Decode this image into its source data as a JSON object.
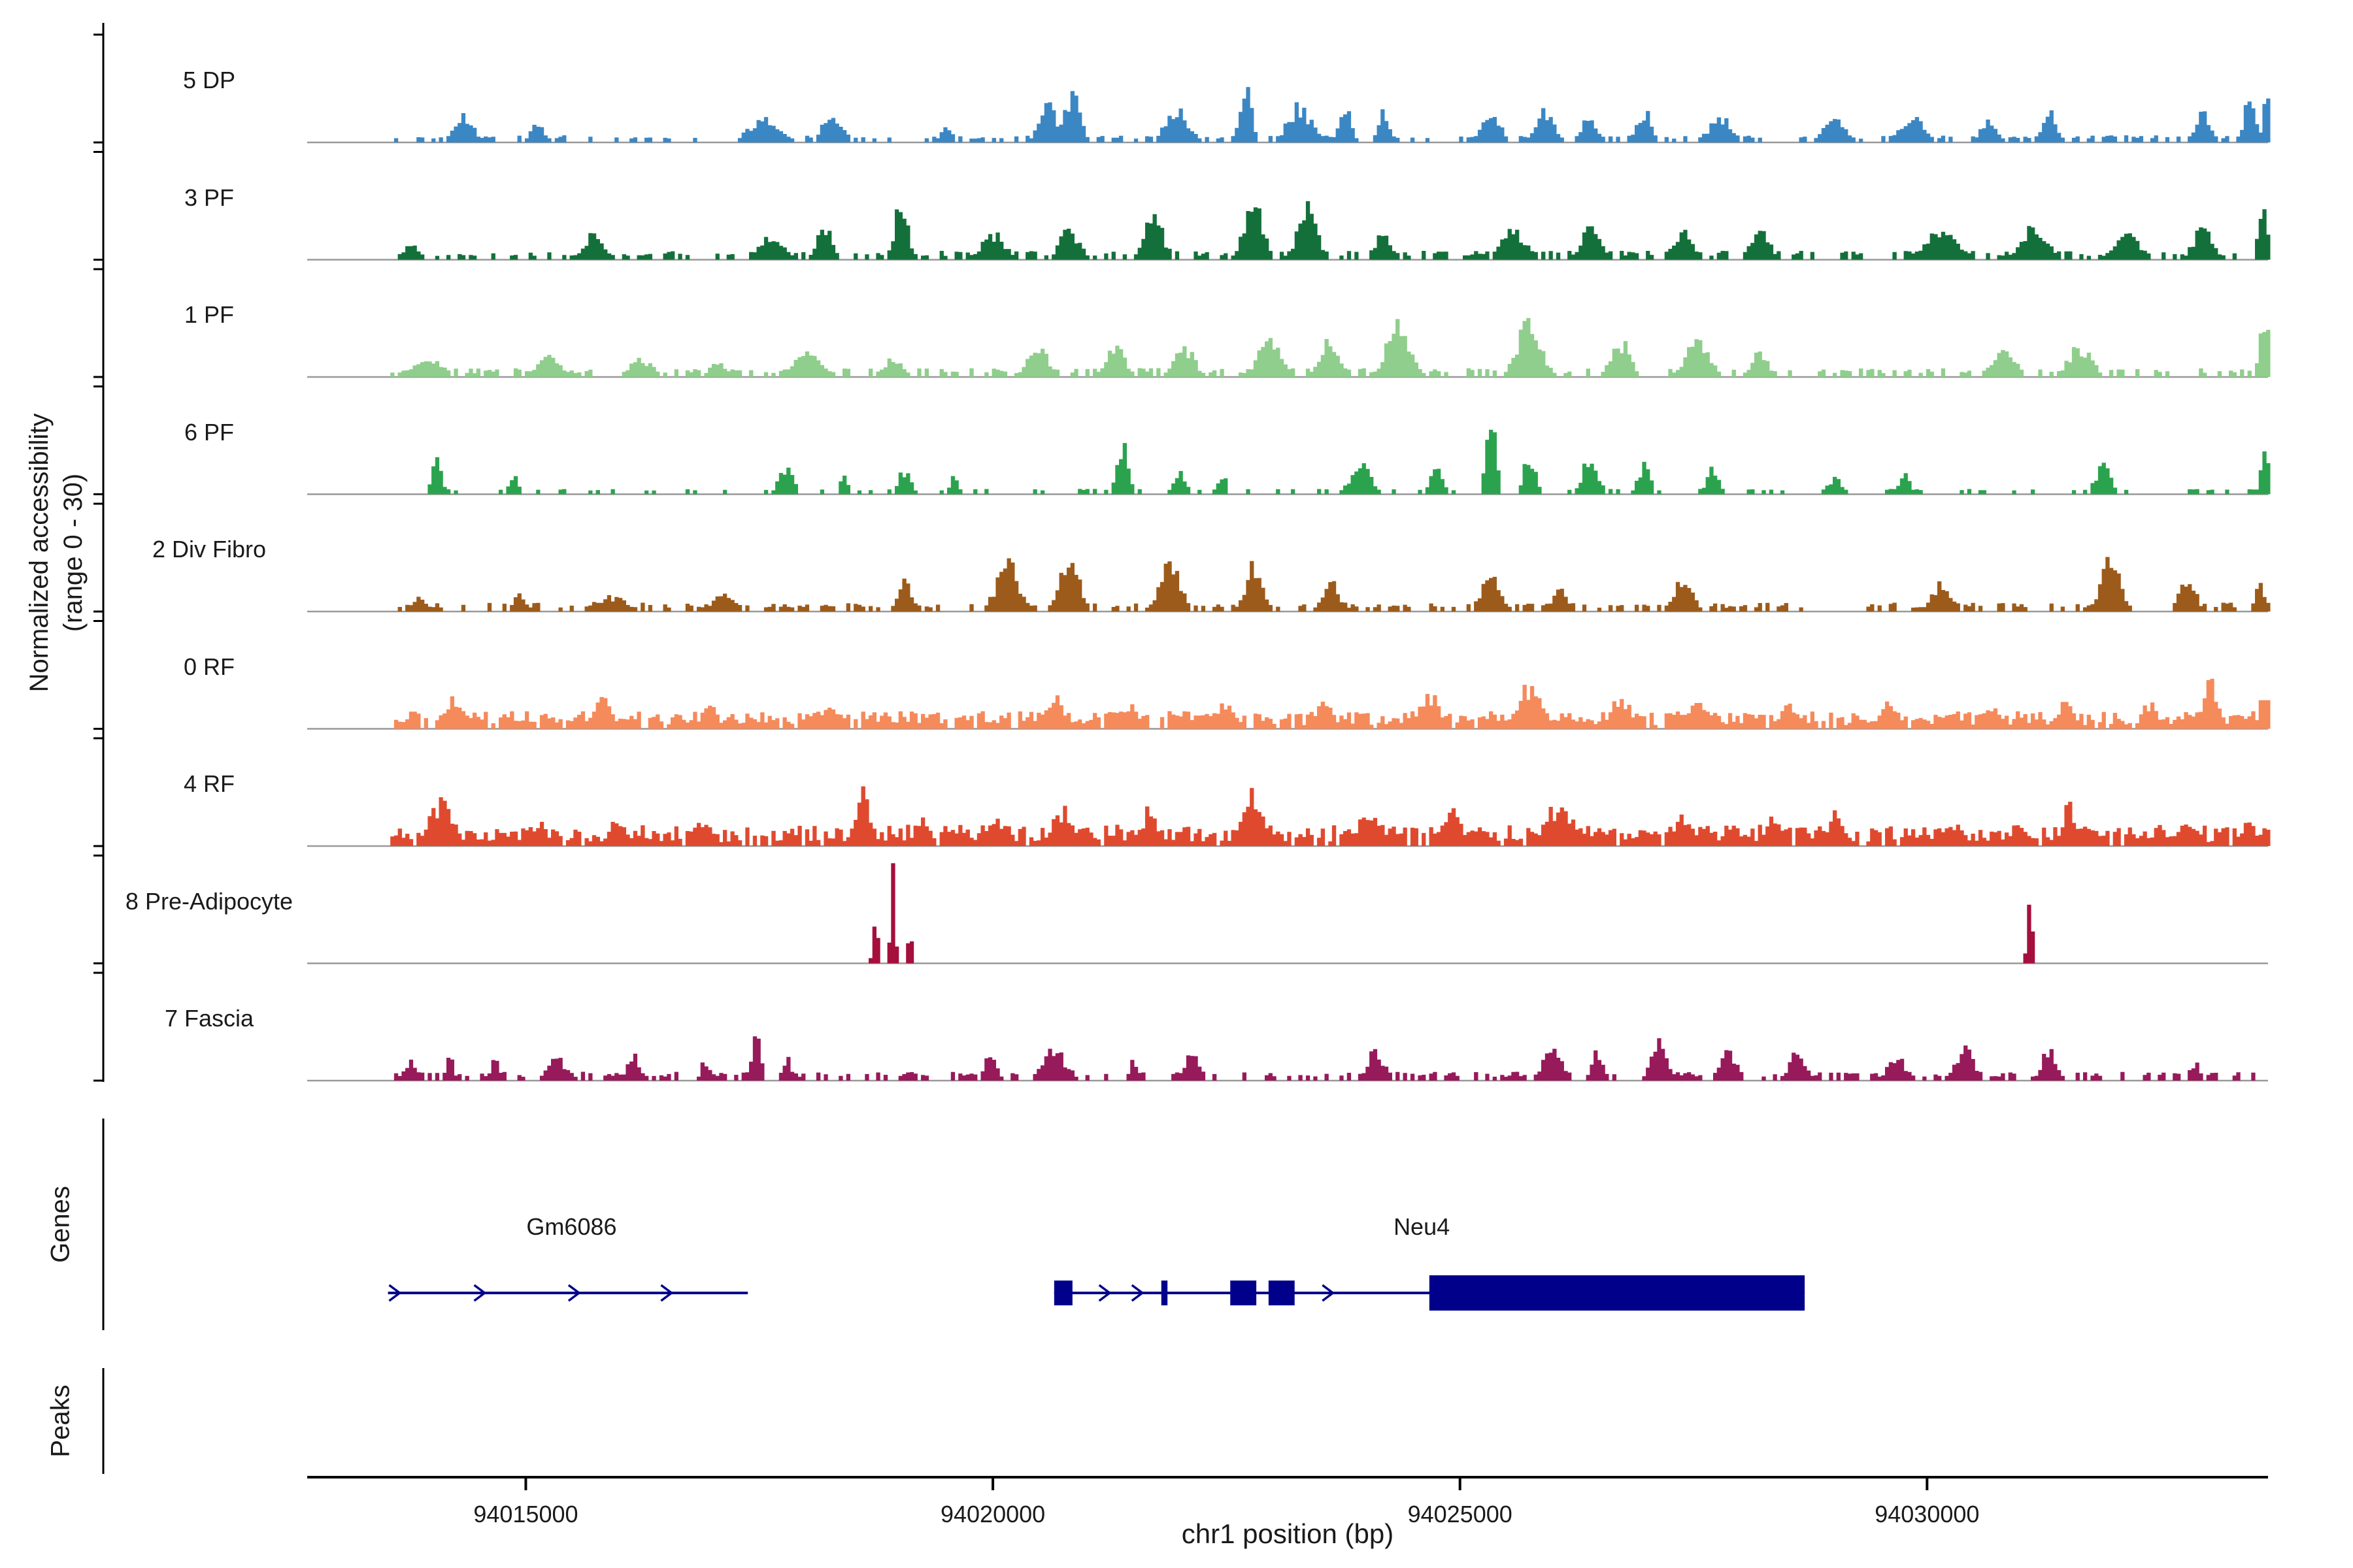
{
  "sections": {
    "genes_label": "Genes",
    "peaks_label": "Peaks"
  },
  "chart_data": {
    "type": "area",
    "title": "",
    "xlabel": "chr1 position (bp)",
    "ylabel": "Normalized accessibility (range 0 - 30)",
    "ylabel_line1": "Normalized accessibility",
    "ylabel_line2": "(range 0 - 30)",
    "xlim": [
      94012660,
      94033650
    ],
    "x_ticks": [
      94015000,
      94020000,
      94025000,
      94030000
    ],
    "x_tick_labels": [
      "94015000",
      "94020000",
      "94025000",
      "94030000"
    ],
    "track_ylim": [
      0,
      30
    ],
    "signal_start": 94013550,
    "signal_end": 94033640,
    "gene_color": "#00008B",
    "baseline_color": "#999999",
    "tracks": [
      {
        "name": "5 DP",
        "color": "#3B87C4",
        "floor": 0.04,
        "clusters": [
          [
            94014340,
            0.25,
            250
          ],
          [
            94015120,
            0.2,
            150
          ],
          [
            94017540,
            0.22,
            400
          ],
          [
            94018280,
            0.3,
            250
          ],
          [
            94019500,
            0.15,
            150
          ],
          [
            94020600,
            0.35,
            250
          ],
          [
            94020850,
            0.45,
            200
          ],
          [
            94021970,
            0.3,
            300
          ],
          [
            94022700,
            0.55,
            160
          ],
          [
            94023280,
            0.35,
            300
          ],
          [
            94023770,
            0.4,
            150
          ],
          [
            94024180,
            0.3,
            150
          ],
          [
            94025330,
            0.3,
            250
          ],
          [
            94025900,
            0.3,
            250
          ],
          [
            94026390,
            0.25,
            200
          ],
          [
            94026970,
            0.3,
            200
          ],
          [
            94027790,
            0.25,
            300
          ],
          [
            94029020,
            0.22,
            300
          ],
          [
            94029840,
            0.25,
            300
          ],
          [
            94030660,
            0.25,
            200
          ],
          [
            94031310,
            0.28,
            200
          ],
          [
            94032950,
            0.3,
            200
          ],
          [
            94033450,
            0.45,
            150
          ],
          [
            94033640,
            0.55,
            90
          ]
        ]
      },
      {
        "name": "3 PF",
        "color": "#14703A",
        "floor": 0.05,
        "clusters": [
          [
            94013770,
            0.2,
            150
          ],
          [
            94015740,
            0.25,
            250
          ],
          [
            94017620,
            0.25,
            300
          ],
          [
            94018200,
            0.3,
            200
          ],
          [
            94019020,
            0.55,
            170
          ],
          [
            94020000,
            0.25,
            300
          ],
          [
            94020820,
            0.3,
            250
          ],
          [
            94021720,
            0.4,
            250
          ],
          [
            94022790,
            0.55,
            250
          ],
          [
            94023360,
            0.5,
            250
          ],
          [
            94024180,
            0.3,
            200
          ],
          [
            94025570,
            0.3,
            300
          ],
          [
            94026390,
            0.3,
            250
          ],
          [
            94027380,
            0.3,
            250
          ],
          [
            94028200,
            0.3,
            250
          ],
          [
            94030160,
            0.3,
            400
          ],
          [
            94031150,
            0.35,
            300
          ],
          [
            94032130,
            0.3,
            300
          ],
          [
            94032950,
            0.3,
            250
          ],
          [
            94033590,
            0.6,
            110
          ]
        ]
      },
      {
        "name": "1 PF",
        "color": "#8FCE8C",
        "floor": 0.05,
        "clusters": [
          [
            94013930,
            0.18,
            400
          ],
          [
            94015250,
            0.2,
            300
          ],
          [
            94016230,
            0.18,
            300
          ],
          [
            94017050,
            0.15,
            200
          ],
          [
            94018030,
            0.25,
            350
          ],
          [
            94018930,
            0.2,
            200
          ],
          [
            94020490,
            0.25,
            300
          ],
          [
            94021310,
            0.3,
            250
          ],
          [
            94022050,
            0.3,
            250
          ],
          [
            94022950,
            0.35,
            300
          ],
          [
            94023610,
            0.4,
            250
          ],
          [
            94024340,
            0.5,
            300
          ],
          [
            94025740,
            0.55,
            300
          ],
          [
            94026720,
            0.35,
            250
          ],
          [
            94027540,
            0.35,
            300
          ],
          [
            94028200,
            0.25,
            200
          ],
          [
            94030820,
            0.25,
            300
          ],
          [
            94031640,
            0.3,
            300
          ],
          [
            94033610,
            0.6,
            120
          ]
        ]
      },
      {
        "name": "6 PF",
        "color": "#2BA34E",
        "floor": 0.03,
        "clusters": [
          [
            94014050,
            0.35,
            130
          ],
          [
            94014870,
            0.2,
            100
          ],
          [
            94017790,
            0.3,
            180
          ],
          [
            94018410,
            0.2,
            100
          ],
          [
            94019050,
            0.25,
            150
          ],
          [
            94019590,
            0.2,
            100
          ],
          [
            94021390,
            0.45,
            150
          ],
          [
            94022000,
            0.25,
            150
          ],
          [
            94022460,
            0.2,
            100
          ],
          [
            94023930,
            0.3,
            250
          ],
          [
            94024750,
            0.35,
            150
          ],
          [
            94025330,
            0.8,
            120
          ],
          [
            94025740,
            0.4,
            150
          ],
          [
            94026390,
            0.35,
            200
          ],
          [
            94026970,
            0.3,
            150
          ],
          [
            94027710,
            0.25,
            150
          ],
          [
            94029020,
            0.15,
            200
          ],
          [
            94029750,
            0.2,
            150
          ],
          [
            94031890,
            0.3,
            200
          ],
          [
            94033610,
            0.5,
            100
          ]
        ]
      },
      {
        "name": "2 Div Fibro",
        "color": "#9C5B1B",
        "floor": 0.05,
        "clusters": [
          [
            94013850,
            0.18,
            150
          ],
          [
            94014920,
            0.2,
            120
          ],
          [
            94015900,
            0.15,
            400
          ],
          [
            94017130,
            0.2,
            250
          ],
          [
            94019050,
            0.3,
            150
          ],
          [
            94020160,
            0.45,
            300
          ],
          [
            94020820,
            0.5,
            250
          ],
          [
            94021890,
            0.55,
            250
          ],
          [
            94022790,
            0.5,
            200
          ],
          [
            94023610,
            0.3,
            200
          ],
          [
            94025330,
            0.35,
            250
          ],
          [
            94026070,
            0.3,
            150
          ],
          [
            94027380,
            0.3,
            250
          ],
          [
            94030160,
            0.3,
            250
          ],
          [
            94031970,
            0.5,
            250
          ],
          [
            94032790,
            0.35,
            200
          ],
          [
            94033570,
            0.3,
            120
          ]
        ]
      },
      {
        "name": "0 RF",
        "color": "#F58A5B",
        "floor": 0.1,
        "clusters": [
          [
            94014260,
            0.3,
            300
          ],
          [
            94015820,
            0.28,
            250
          ],
          [
            94016970,
            0.22,
            200
          ],
          [
            94018280,
            0.22,
            250
          ],
          [
            94019340,
            0.2,
            200
          ],
          [
            94020660,
            0.3,
            300
          ],
          [
            94021480,
            0.22,
            200
          ],
          [
            94022460,
            0.25,
            250
          ],
          [
            94023530,
            0.25,
            250
          ],
          [
            94024670,
            0.35,
            250
          ],
          [
            94025740,
            0.4,
            300
          ],
          [
            94026720,
            0.3,
            250
          ],
          [
            94027540,
            0.25,
            250
          ],
          [
            94028530,
            0.22,
            250
          ],
          [
            94029590,
            0.25,
            250
          ],
          [
            94030660,
            0.22,
            250
          ],
          [
            94031480,
            0.25,
            200
          ],
          [
            94032380,
            0.25,
            200
          ],
          [
            94033030,
            0.45,
            200
          ],
          [
            94033610,
            0.3,
            150
          ]
        ]
      },
      {
        "name": "4 RF",
        "color": "#DF4A2F",
        "floor": 0.12,
        "clusters": [
          [
            94014100,
            0.45,
            300
          ],
          [
            94015160,
            0.25,
            150
          ],
          [
            94015980,
            0.25,
            200
          ],
          [
            94016890,
            0.25,
            250
          ],
          [
            94018610,
            0.5,
            200
          ],
          [
            94019260,
            0.3,
            150
          ],
          [
            94020000,
            0.3,
            200
          ],
          [
            94020740,
            0.35,
            250
          ],
          [
            94021670,
            0.35,
            200
          ],
          [
            94022790,
            0.5,
            300
          ],
          [
            94024020,
            0.35,
            250
          ],
          [
            94024920,
            0.35,
            200
          ],
          [
            94026070,
            0.4,
            400
          ],
          [
            94027380,
            0.3,
            250
          ],
          [
            94028360,
            0.3,
            200
          ],
          [
            94029020,
            0.3,
            250
          ],
          [
            94030330,
            0.25,
            200
          ],
          [
            94030980,
            0.3,
            150
          ],
          [
            94031510,
            0.45,
            130
          ],
          [
            94032790,
            0.2,
            300
          ],
          [
            94033440,
            0.25,
            150
          ]
        ]
      },
      {
        "name": "8 Pre-Adipocyte",
        "color": "#A50F3C",
        "floor": 0.0,
        "clusters": [
          [
            94018740,
            0.5,
            60
          ],
          [
            94018930,
            1.0,
            55
          ],
          [
            94019110,
            0.35,
            55
          ],
          [
            94031100,
            0.6,
            65
          ]
        ]
      },
      {
        "name": "7 Fascia",
        "color": "#971A5B",
        "floor": 0.05,
        "clusters": [
          [
            94013770,
            0.2,
            200
          ],
          [
            94014180,
            0.25,
            100
          ],
          [
            94014670,
            0.2,
            100
          ],
          [
            94015330,
            0.22,
            250
          ],
          [
            94016150,
            0.25,
            150
          ],
          [
            94016920,
            0.2,
            100
          ],
          [
            94017460,
            0.45,
            120
          ],
          [
            94017790,
            0.25,
            100
          ],
          [
            94019970,
            0.25,
            150
          ],
          [
            94020660,
            0.3,
            300
          ],
          [
            94021510,
            0.2,
            100
          ],
          [
            94022130,
            0.25,
            200
          ],
          [
            94024100,
            0.3,
            200
          ],
          [
            94025980,
            0.3,
            250
          ],
          [
            94026480,
            0.3,
            150
          ],
          [
            94027130,
            0.4,
            200
          ],
          [
            94027870,
            0.3,
            200
          ],
          [
            94028610,
            0.3,
            200
          ],
          [
            94029670,
            0.25,
            200
          ],
          [
            94030410,
            0.3,
            250
          ],
          [
            94031310,
            0.3,
            200
          ],
          [
            94032870,
            0.2,
            120
          ]
        ]
      }
    ],
    "genes": [
      {
        "name": "Gm6086",
        "strand": "+",
        "start": 94013525,
        "end": 94017377,
        "label_bp": 94015490,
        "exons": [],
        "arrows": [
          94013650,
          94014560,
          94015570,
          94016560
        ]
      },
      {
        "name": "Neu4",
        "strand": "+",
        "start": 94020656,
        "end": 94028690,
        "label_bp": 94024590,
        "exons": [
          [
            94020656,
            94020852,
            "small"
          ],
          [
            94021803,
            94021869,
            "small"
          ],
          [
            94022541,
            94022820,
            "small"
          ],
          [
            94022951,
            94023230,
            "small"
          ],
          [
            94024672,
            94028690,
            "big"
          ]
        ],
        "arrows": [
          94021250,
          94021600,
          94023640
        ]
      }
    ],
    "peaks": []
  }
}
